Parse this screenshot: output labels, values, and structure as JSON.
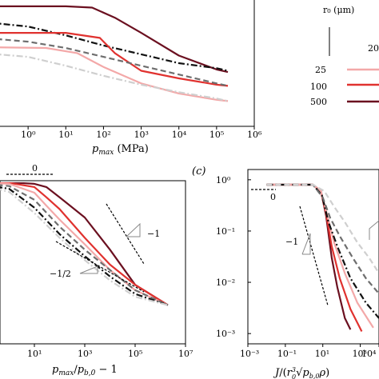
{
  "colors": {
    "c25": "#f3a8a8",
    "c100": "#e0322f",
    "c500": "#6b1020",
    "gray_dark": "#6e6e6e",
    "gray_light": "#cfcfcf",
    "black": "#111111"
  },
  "legend": {
    "r0_label": "r₀ (μm)",
    "col_head": "20",
    "entries": [
      {
        "label": "25",
        "color_key": "c25"
      },
      {
        "label": "100",
        "color_key": "c100"
      },
      {
        "label": "500",
        "color_key": "c500"
      }
    ]
  },
  "chart_data": [
    {
      "panel": "b (top)",
      "type": "line",
      "xscale": "log",
      "xlabel": "p_max (MPa)",
      "xlim": [
        0.1,
        1000000.0
      ],
      "xticks": [
        "10⁰",
        "10¹",
        "10²",
        "10³",
        "10⁴",
        "10⁵",
        "10⁶"
      ],
      "series": [
        {
          "style": "solid",
          "color_key": "c500",
          "points": [
            [
              0.01,
              0.95
            ],
            [
              10,
              0.95
            ],
            [
              50,
              0.94
            ],
            [
              200,
              0.86
            ],
            [
              1000,
              0.74
            ],
            [
              10000,
              0.56
            ],
            [
              100000,
              0.45
            ],
            [
              200000,
              0.43
            ]
          ]
        },
        {
          "style": "dashdot",
          "color_key": "black",
          "points": [
            [
              0.01,
              0.85
            ],
            [
              1,
              0.79
            ],
            [
              10,
              0.72
            ],
            [
              100,
              0.64
            ],
            [
              1000,
              0.57
            ],
            [
              10000,
              0.5
            ],
            [
              100000,
              0.46
            ],
            [
              200000,
              0.44
            ]
          ]
        },
        {
          "style": "solid",
          "color_key": "c100",
          "points": [
            [
              0.01,
              0.74
            ],
            [
              10,
              0.74
            ],
            [
              80,
              0.7
            ],
            [
              200,
              0.58
            ],
            [
              1000,
              0.44
            ],
            [
              10000,
              0.38
            ],
            [
              100000,
              0.33
            ],
            [
              200000,
              0.32
            ]
          ]
        },
        {
          "style": "dashed",
          "color_key": "gray_dark",
          "points": [
            [
              0.01,
              0.72
            ],
            [
              1,
              0.67
            ],
            [
              10,
              0.62
            ],
            [
              100,
              0.55
            ],
            [
              1000,
              0.48
            ],
            [
              10000,
              0.41
            ],
            [
              100000,
              0.34
            ],
            [
              200000,
              0.32
            ]
          ]
        },
        {
          "style": "solid",
          "color_key": "c25",
          "points": [
            [
              0.01,
              0.63
            ],
            [
              3,
              0.62
            ],
            [
              20,
              0.58
            ],
            [
              100,
              0.47
            ],
            [
              1000,
              0.34
            ],
            [
              10000,
              0.26
            ],
            [
              100000,
              0.21
            ],
            [
              200000,
              0.2
            ]
          ]
        },
        {
          "style": "dashdot",
          "color_key": "gray_light",
          "points": [
            [
              0.01,
              0.6
            ],
            [
              1,
              0.55
            ],
            [
              10,
              0.48
            ],
            [
              100,
              0.4
            ],
            [
              1000,
              0.33
            ],
            [
              10000,
              0.27
            ],
            [
              100000,
              0.22
            ],
            [
              200000,
              0.2
            ]
          ]
        }
      ]
    },
    {
      "panel": "b (bottom)",
      "type": "line",
      "xscale": "log",
      "xlabel": "p_max/p_b,0 − 1",
      "xlim": [
        0.1,
        10000000.0
      ],
      "xticks": [
        "10¹",
        "10³",
        "10⁵",
        "10⁷"
      ],
      "annotations": [
        "0",
        "−1",
        "−1/2"
      ],
      "series": [
        {
          "style": "solid",
          "color_key": "c500",
          "points": [
            [
              0.03,
              1
            ],
            [
              1,
              1
            ],
            [
              10,
              0.95
            ],
            [
              30,
              0.85
            ],
            [
              100,
              0.6
            ],
            [
              1000,
              0.3
            ],
            [
              10000,
              0.1
            ],
            [
              100000,
              0.03
            ],
            [
              2000000,
              0.015
            ]
          ]
        },
        {
          "style": "solid",
          "color_key": "c100",
          "points": [
            [
              0.03,
              1
            ],
            [
              1,
              0.98
            ],
            [
              10,
              0.85
            ],
            [
              30,
              0.6
            ],
            [
              100,
              0.4
            ],
            [
              1000,
              0.15
            ],
            [
              10000,
              0.06
            ],
            [
              100000,
              0.03
            ],
            [
              2000000,
              0.015
            ]
          ]
        },
        {
          "style": "solid",
          "color_key": "c25",
          "points": [
            [
              0.03,
              1
            ],
            [
              1,
              0.95
            ],
            [
              10,
              0.7
            ],
            [
              30,
              0.45
            ],
            [
              100,
              0.28
            ],
            [
              1000,
              0.12
            ],
            [
              10000,
              0.05
            ],
            [
              100000,
              0.025
            ],
            [
              2000000,
              0.015
            ]
          ]
        },
        {
          "style": "dashed",
          "color_key": "gray_dark",
          "points": [
            [
              0.03,
              1
            ],
            [
              1,
              0.88
            ],
            [
              10,
              0.55
            ],
            [
              100,
              0.22
            ],
            [
              1000,
              0.1
            ],
            [
              10000,
              0.05
            ],
            [
              100000,
              0.025
            ],
            [
              2000000,
              0.015
            ]
          ]
        },
        {
          "style": "dashdot",
          "color_key": "black",
          "points": [
            [
              0.03,
              1
            ],
            [
              1,
              0.8
            ],
            [
              10,
              0.42
            ],
            [
              100,
              0.17
            ],
            [
              1000,
              0.08
            ],
            [
              10000,
              0.04
            ],
            [
              100000,
              0.022
            ],
            [
              2000000,
              0.015
            ]
          ]
        },
        {
          "style": "dashdot",
          "color_key": "gray_light",
          "points": [
            [
              0.03,
              1
            ],
            [
              1,
              0.72
            ],
            [
              10,
              0.35
            ],
            [
              100,
              0.15
            ],
            [
              1000,
              0.07
            ],
            [
              10000,
              0.035
            ],
            [
              100000,
              0.02
            ],
            [
              2000000,
              0.015
            ]
          ]
        }
      ]
    },
    {
      "panel": "c",
      "panel_label": "(c)",
      "type": "line",
      "xscale": "log",
      "yscale": "log",
      "xlabel": "J/(r₀³√(p_b,0 ρ))",
      "xlim": [
        0.001,
        10000.0
      ],
      "ylim": [
        0.001,
        1.5
      ],
      "xticks": [
        "10⁻³",
        "10⁻¹",
        "10¹",
        "10³",
        "10⁴"
      ],
      "yticks": [
        "10⁰",
        "10⁻¹",
        "10⁻²",
        "10⁻³"
      ],
      "annotations": [
        "0",
        "−1"
      ],
      "series": [
        {
          "style": "solid",
          "color_key": "c500",
          "points": [
            [
              0.01,
              0.8
            ],
            [
              3,
              0.8
            ],
            [
              8,
              0.6
            ],
            [
              15,
              0.2
            ],
            [
              30,
              0.03
            ],
            [
              60,
              0.008
            ],
            [
              150,
              0.002
            ],
            [
              300,
              0.0012
            ]
          ]
        },
        {
          "style": "solid",
          "color_key": "c100",
          "points": [
            [
              0.01,
              0.8
            ],
            [
              3,
              0.8
            ],
            [
              8,
              0.58
            ],
            [
              15,
              0.22
            ],
            [
              30,
              0.05
            ],
            [
              80,
              0.012
            ],
            [
              300,
              0.003
            ],
            [
              1200,
              0.0011
            ]
          ]
        },
        {
          "style": "solid",
          "color_key": "c25",
          "points": [
            [
              0.01,
              0.8
            ],
            [
              3,
              0.8
            ],
            [
              8,
              0.6
            ],
            [
              15,
              0.25
            ],
            [
              40,
              0.06
            ],
            [
              150,
              0.015
            ],
            [
              700,
              0.004
            ],
            [
              5000,
              0.0013
            ]
          ]
        },
        {
          "style": "dashdot",
          "color_key": "black",
          "points": [
            [
              0.01,
              0.8
            ],
            [
              3,
              0.8
            ],
            [
              9,
              0.5
            ],
            [
              20,
              0.15
            ],
            [
              60,
              0.05
            ],
            [
              300,
              0.012
            ],
            [
              2000,
              0.004
            ],
            [
              10000,
              0.002
            ]
          ]
        },
        {
          "style": "dashed",
          "color_key": "gray_dark",
          "points": [
            [
              0.01,
              0.8
            ],
            [
              3,
              0.8
            ],
            [
              10,
              0.45
            ],
            [
              25,
              0.18
            ],
            [
              80,
              0.08
            ],
            [
              400,
              0.03
            ],
            [
              2000,
              0.012
            ],
            [
              10000,
              0.006
            ]
          ]
        },
        {
          "style": "dashed",
          "color_key": "gray_light",
          "points": [
            [
              0.01,
              0.8
            ],
            [
              3,
              0.8
            ],
            [
              12,
              0.6
            ],
            [
              40,
              0.3
            ],
            [
              150,
              0.15
            ],
            [
              700,
              0.06
            ],
            [
              3000,
              0.03
            ],
            [
              10000,
              0.015
            ]
          ]
        }
      ]
    }
  ]
}
